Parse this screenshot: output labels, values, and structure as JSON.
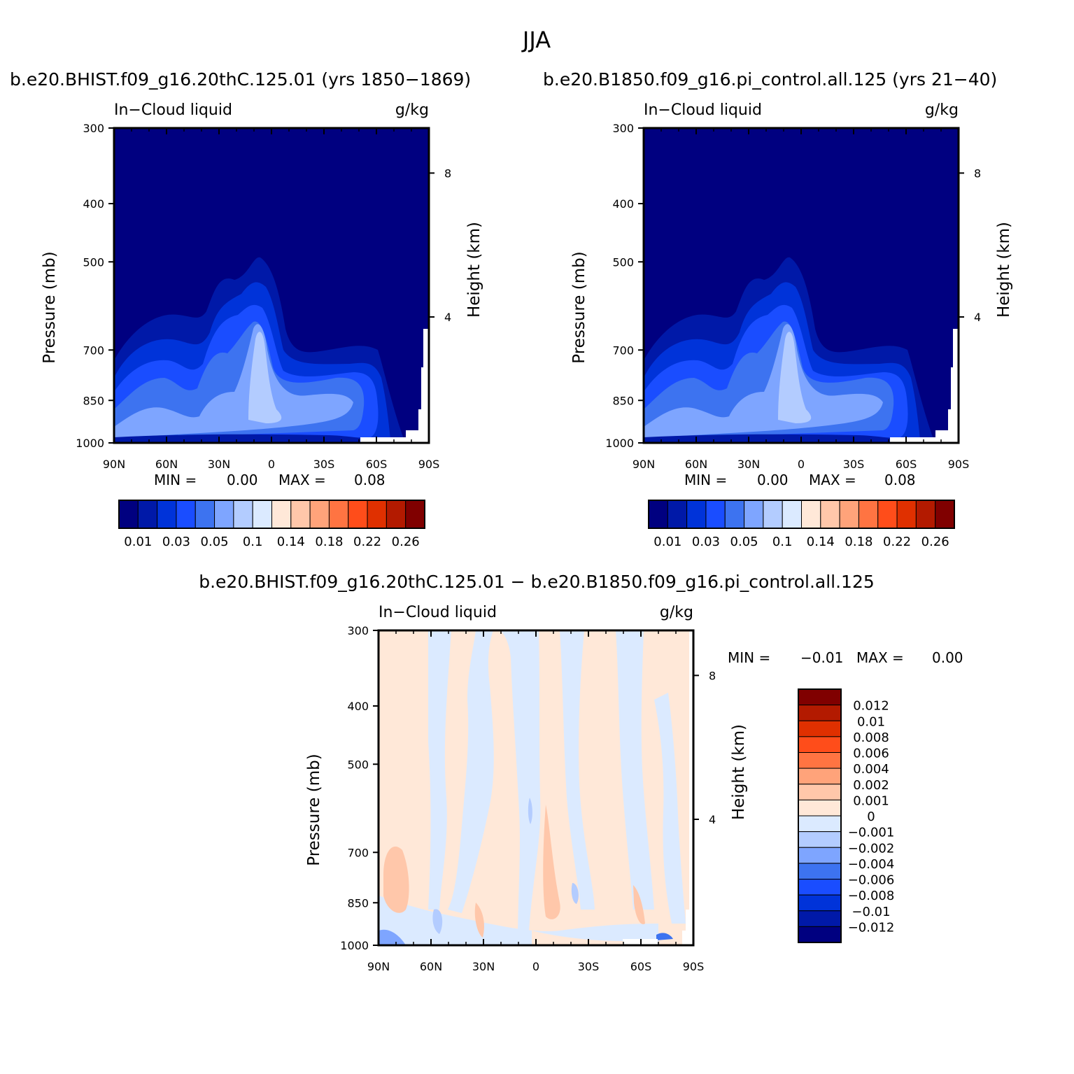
{
  "figure": {
    "season": "JJA",
    "case_title": "b.e20.BHIST.f09_g16.20thC.125.01 (yrs 1850−1869)",
    "control_title": "b.e20.B1850.f09_g16.pi_control.all.125 (yrs 21−40)",
    "diff_title": "b.e20.BHIST.f09_g16.20thC.125.01 − b.e20.B1850.f09_g16.pi_control.all.125"
  },
  "chart_data": [
    {
      "type": "heatmap",
      "panel": "case",
      "variable": "In−Cloud liquid",
      "units": "g/kg",
      "ylabel": "Pressure (mb)",
      "ylabel_right": "Height (km)",
      "x_ticks": [
        "90N",
        "60N",
        "30N",
        "0",
        "30S",
        "60S",
        "90S"
      ],
      "y_ticks": [
        "300",
        "400",
        "500",
        "700",
        "850",
        "1000"
      ],
      "y_right_ticks": [
        "8",
        "4"
      ],
      "ylim": [
        1000,
        300
      ],
      "min_label": "MIN =",
      "min_value": "0.00",
      "max_label": "MAX =",
      "max_value": "0.08",
      "colorbar_labels": [
        "0.01",
        "0.03",
        "0.05",
        "0.1",
        "0.14",
        "0.18",
        "0.22",
        "0.26"
      ]
    },
    {
      "type": "heatmap",
      "panel": "control",
      "variable": "In−Cloud liquid",
      "units": "g/kg",
      "ylabel": "Pressure (mb)",
      "ylabel_right": "Height (km)",
      "x_ticks": [
        "90N",
        "60N",
        "30N",
        "0",
        "30S",
        "60S",
        "90S"
      ],
      "y_ticks": [
        "300",
        "400",
        "500",
        "700",
        "850",
        "1000"
      ],
      "y_right_ticks": [
        "8",
        "4"
      ],
      "ylim": [
        1000,
        300
      ],
      "min_label": "MIN =",
      "min_value": "0.00",
      "max_label": "MAX =",
      "max_value": "0.08",
      "colorbar_labels": [
        "0.01",
        "0.03",
        "0.05",
        "0.1",
        "0.14",
        "0.18",
        "0.22",
        "0.26"
      ]
    },
    {
      "type": "heatmap",
      "panel": "difference",
      "variable": "In−Cloud liquid",
      "units": "g/kg",
      "ylabel": "Pressure (mb)",
      "ylabel_right": "Height (km)",
      "x_ticks": [
        "90N",
        "60N",
        "30N",
        "0",
        "30S",
        "60S",
        "90S"
      ],
      "y_ticks": [
        "300",
        "400",
        "500",
        "700",
        "850",
        "1000"
      ],
      "y_right_ticks": [
        "8",
        "4"
      ],
      "ylim": [
        1000,
        300
      ],
      "min_label": "MIN =",
      "min_value": "−0.01",
      "max_label": "MAX =",
      "max_value": "0.00",
      "colorbar_labels": [
        "0.012",
        "0.01",
        "0.008",
        "0.006",
        "0.004",
        "0.002",
        "0.001",
        "0",
        "−0.001",
        "−0.002",
        "−0.004",
        "−0.006",
        "−0.008",
        "−0.01",
        "−0.012"
      ]
    }
  ],
  "colors": {
    "palette": [
      "#000080",
      "#0019a8",
      "#0033d9",
      "#1a4dff",
      "#3d73f0",
      "#7ea5ff",
      "#b3ccff",
      "#dbeaff",
      "#ffe8d8",
      "#ffc7aa",
      "#ffa37a",
      "#ff7442",
      "#ff4d1a",
      "#e03000",
      "#b31a00",
      "#800000"
    ]
  }
}
